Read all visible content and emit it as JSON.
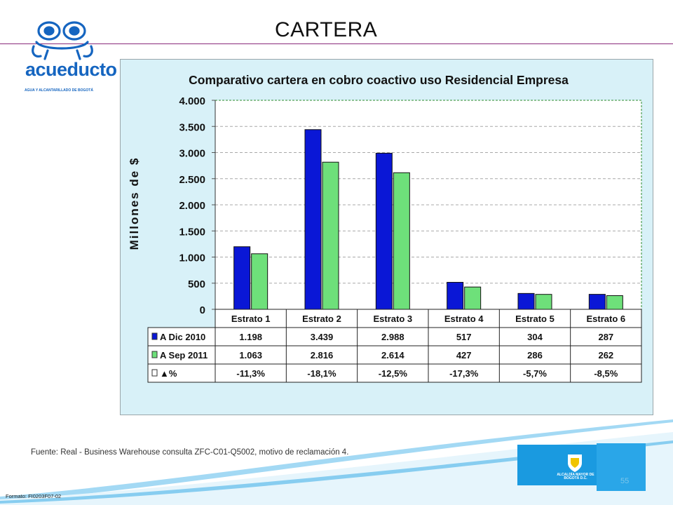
{
  "slide": {
    "title": "CARTERA",
    "source": "Fuente: Real - Business Warehouse  consulta ZFC-C01-Q5002,  motivo de reclamación 4.",
    "format_code": "Formato: FI0203F07-02",
    "page_number": "55"
  },
  "logo": {
    "name": "acueducto",
    "tagline": "AGUA Y ALCANTARILLADO DE BOGOTÁ"
  },
  "footer": {
    "alcaldia": "ALCALDÍA MAYOR DE BOGOTÁ D.C."
  },
  "colors": {
    "series1": "#0a17d6",
    "series2": "#6ee07a",
    "panel_bg": "#d8f1f8",
    "plot_border": "#2e8b2e",
    "title_line": "#8a2a7a",
    "footer_blue": "#1a9ae0"
  },
  "chart_data": {
    "type": "bar",
    "title": "Comparativo cartera en cobro coactivo uso Residencial Empresa",
    "ylabel": "Millones de $",
    "xlabel": "",
    "ylim": [
      0,
      4000
    ],
    "yticks": [
      0,
      500,
      1000,
      1500,
      2000,
      2500,
      3000,
      3500,
      4000
    ],
    "ytick_labels": [
      "0",
      "500",
      "1.000",
      "1.500",
      "2.000",
      "2.500",
      "3.000",
      "3.500",
      "4.000"
    ],
    "categories": [
      "Estrato 1",
      "Estrato 2",
      "Estrato 3",
      "Estrato 4",
      "Estrato 5",
      "Estrato 6"
    ],
    "grid": true,
    "series": [
      {
        "name": "A Dic 2010",
        "values": [
          1198,
          3439,
          2988,
          517,
          304,
          287
        ],
        "color": "#0a17d6",
        "labels": [
          "1.198",
          "3.439",
          "2.988",
          "517",
          "304",
          "287"
        ]
      },
      {
        "name": "A  Sep 2011",
        "values": [
          1063,
          2816,
          2614,
          427,
          286,
          262
        ],
        "color": "#6ee07a",
        "labels": [
          "1.063",
          "2.816",
          "2.614",
          "427",
          "286",
          "262"
        ]
      }
    ],
    "table_extra_row": {
      "name": "▲%",
      "values": [
        "-11,3%",
        "-18,1%",
        "-12,5%",
        "-17,3%",
        "-5,7%",
        "-8,5%"
      ]
    }
  }
}
